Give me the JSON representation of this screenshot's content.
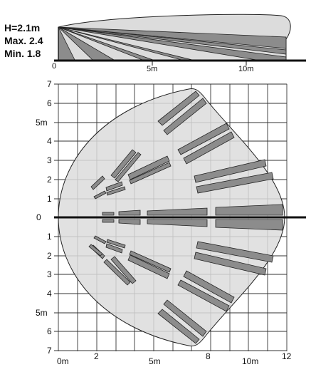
{
  "side_view": {
    "height_label": "H=2.1m",
    "max_label": "Max. 2.4",
    "min_label": "Min. 1.8",
    "axis_ticks": [
      "0",
      "5m",
      "10m"
    ]
  },
  "top_view": {
    "y_ticks_upper": [
      "7",
      "6",
      "5m",
      "4",
      "3",
      "2",
      "1"
    ],
    "y_tick_zero": "0",
    "y_ticks_lower": [
      "1",
      "2",
      "3",
      "4",
      "5m",
      "6",
      "7"
    ],
    "x_ticks": [
      "0m",
      "2",
      "5m",
      "8",
      "10m",
      "12"
    ]
  },
  "colors": {
    "zone_fill": "#dcdcdc",
    "beam_fill": "#8c8c8c",
    "outline": "#222222",
    "grid": "#333333"
  }
}
